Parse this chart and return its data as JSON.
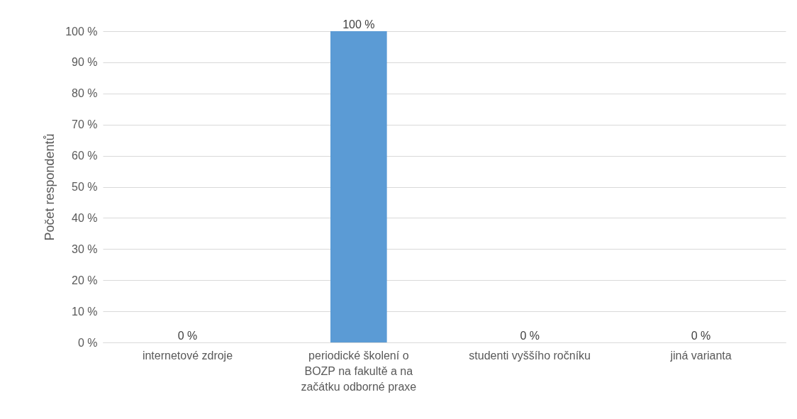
{
  "chart_data": {
    "type": "bar",
    "categories": [
      "internetové zdroje",
      "periodické školení o BOZP na fakultě a na začátku odborné praxe",
      "studenti vyššího ročníku",
      "jiná varianta"
    ],
    "values": [
      0,
      100,
      0,
      0
    ],
    "value_labels": [
      "0 %",
      "100 %",
      "0 %",
      "0 %"
    ],
    "color": "#5b9bd5",
    "ylabel": "Počet respondentů",
    "ylim": [
      0,
      100
    ],
    "yticks": [
      {
        "value": 0,
        "label": "0 %"
      },
      {
        "value": 10,
        "label": "10 %"
      },
      {
        "value": 20,
        "label": "20 %"
      },
      {
        "value": 30,
        "label": "30 %"
      },
      {
        "value": 40,
        "label": "40 %"
      },
      {
        "value": 50,
        "label": "50 %"
      },
      {
        "value": 60,
        "label": "60 %"
      },
      {
        "value": 70,
        "label": "70 %"
      },
      {
        "value": 80,
        "label": "80 %"
      },
      {
        "value": 90,
        "label": "90 %"
      },
      {
        "value": 100,
        "label": "100 %"
      }
    ],
    "grid": "y"
  }
}
